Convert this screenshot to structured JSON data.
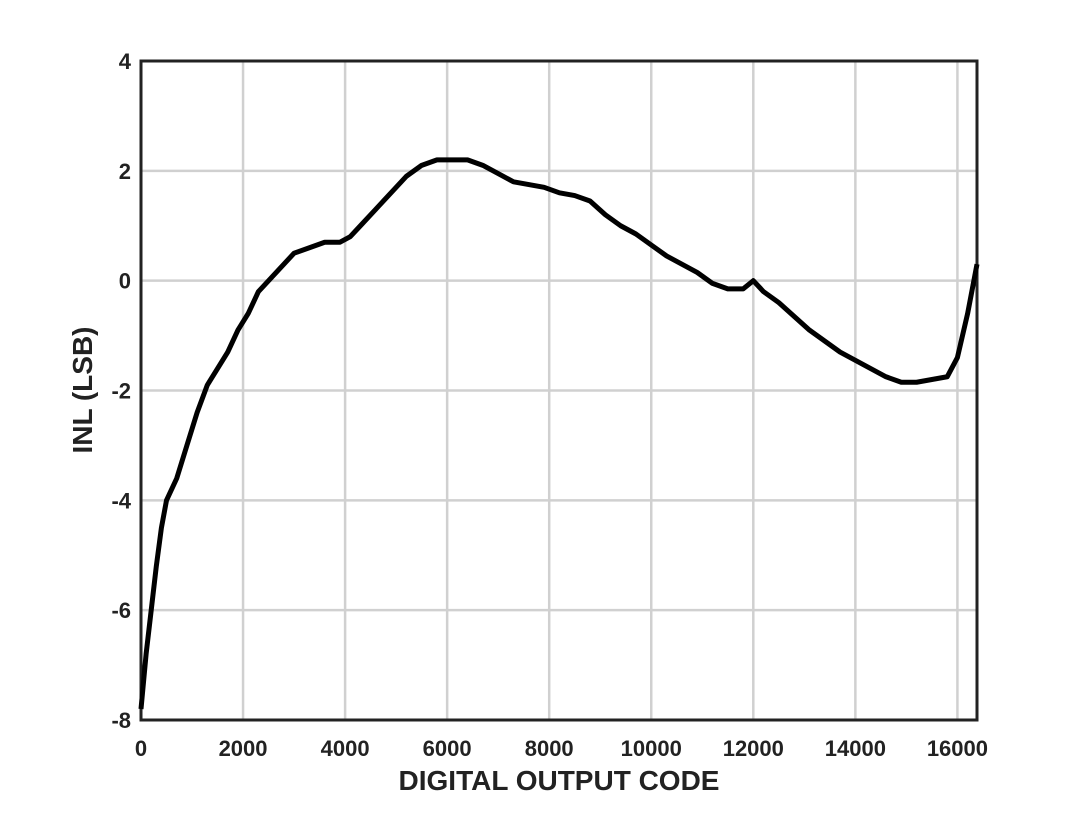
{
  "chart_data": {
    "type": "line",
    "x_label": "DIGITAL OUTPUT CODE",
    "y_label": "INL (LSB)",
    "x": [
      0,
      100,
      200,
      300,
      400,
      500,
      700,
      900,
      1100,
      1300,
      1500,
      1700,
      1900,
      2100,
      2300,
      2500,
      2700,
      3000,
      3300,
      3600,
      3900,
      4100,
      4300,
      4600,
      4900,
      5200,
      5500,
      5800,
      6100,
      6400,
      6700,
      7000,
      7300,
      7600,
      7900,
      8200,
      8500,
      8800,
      9100,
      9400,
      9700,
      10000,
      10300,
      10600,
      10900,
      11200,
      11500,
      11800,
      12000,
      12200,
      12500,
      12800,
      13100,
      13400,
      13700,
      14000,
      14300,
      14600,
      14900,
      15200,
      15500,
      15800,
      16000,
      16200,
      16384
    ],
    "series": [
      {
        "name": "INL",
        "color": "#000000",
        "values": [
          -7.8,
          -6.8,
          -6,
          -5.2,
          -4.5,
          -4,
          -3.6,
          -3,
          -2.4,
          -1.9,
          -1.6,
          -1.3,
          -0.9,
          -0.6,
          -0.2,
          0,
          0.2,
          0.5,
          0.6,
          0.7,
          0.7,
          0.8,
          1.0,
          1.3,
          1.6,
          1.9,
          2.1,
          2.2,
          2.2,
          2.2,
          2.1,
          1.95,
          1.8,
          1.75,
          1.7,
          1.6,
          1.55,
          1.45,
          1.2,
          1.0,
          0.85,
          0.65,
          0.45,
          0.3,
          0.15,
          -0.05,
          -0.15,
          -0.15,
          0.0,
          -0.2,
          -0.4,
          -0.65,
          -0.9,
          -1.1,
          -1.3,
          -1.45,
          -1.6,
          -1.75,
          -1.85,
          -1.85,
          -1.8,
          -1.75,
          -1.4,
          -0.6,
          0.3
        ]
      }
    ],
    "xlim": [
      0,
      16384
    ],
    "ylim": [
      -8,
      4
    ],
    "xticks": [
      0,
      2000,
      4000,
      6000,
      8000,
      10000,
      12000,
      14000,
      16000
    ],
    "yticks": [
      -8,
      -6,
      -4,
      -2,
      0,
      2,
      4
    ],
    "grid": true
  }
}
